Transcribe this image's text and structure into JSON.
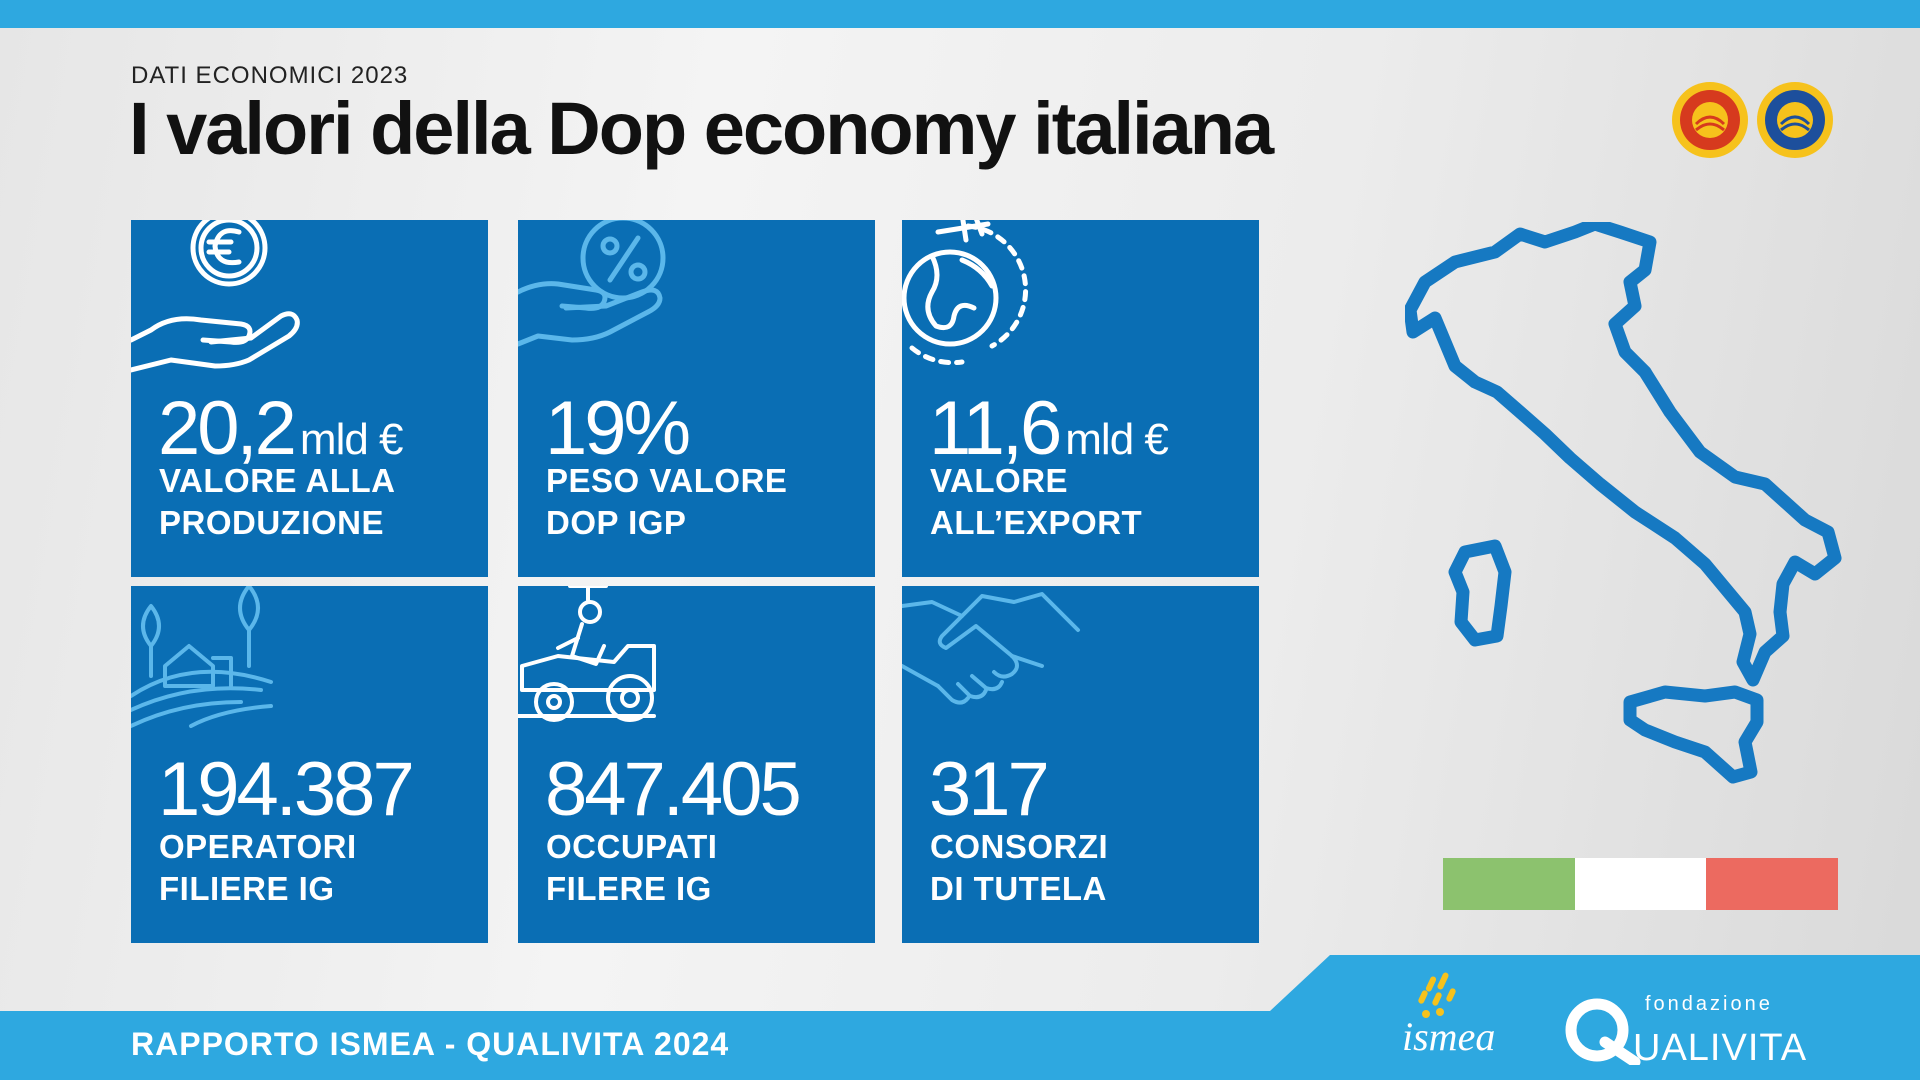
{
  "header": {
    "kicker": "DATI ECONOMICI 2023",
    "title": "I valori della Dop economy italiana"
  },
  "stats": [
    {
      "value": "20,2",
      "unit": "mld €",
      "label_line1": "VALORE ALLA",
      "label_line2": "PRODUZIONE",
      "icon": "euro-hand-icon"
    },
    {
      "value": "19%",
      "unit": "",
      "label_line1": "PESO VALORE",
      "label_line2": "DOP IGP",
      "icon": "percent-hand-icon"
    },
    {
      "value": "11,6",
      "unit": "mld €",
      "label_line1": "VALORE",
      "label_line2": "ALL’EXPORT",
      "icon": "globe-plane-icon"
    },
    {
      "value": "194.387",
      "unit": "",
      "label_line1": "OPERATORI",
      "label_line2": "FILIERE IG",
      "icon": "farm-landscape-icon"
    },
    {
      "value": "847.405",
      "unit": "",
      "label_line1": "OCCUPATI",
      "label_line2": "FILERE IG",
      "icon": "farmer-tractor-icon"
    },
    {
      "value": "317",
      "unit": "",
      "label_line1": "CONSORZI",
      "label_line2": "DI TUTELA",
      "icon": "handshake-icon"
    }
  ],
  "colors": {
    "tile": "#0a6eb4",
    "accent": "#2ea8e0",
    "flag_green": "#8cc26e",
    "flag_white": "#ffffff",
    "flag_red": "#ec6a60"
  },
  "footer": {
    "text": "RAPPORTO ISMEA - QUALIVITA 2024",
    "ismea_logo": "ismea",
    "qualivita_small": "fondazione",
    "qualivita_big": "UALIVITA"
  }
}
